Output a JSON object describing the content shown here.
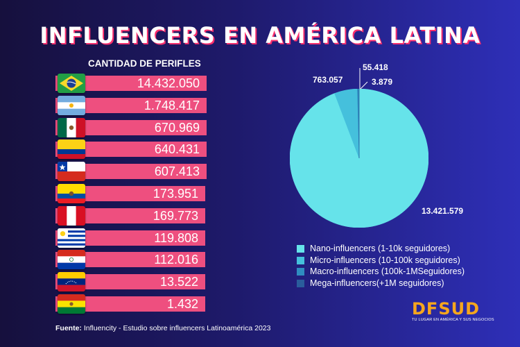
{
  "title": "INFLUENCERS EN AMÉRICA LATINA",
  "colors": {
    "bar": "#ee4f7f",
    "title_shadow": "#ff2f6d",
    "logo": "#f6a61d"
  },
  "chart_data": [
    {
      "type": "bar",
      "orientation": "horizontal",
      "title": "CANTIDAD DE PERIFLES",
      "categories": [
        "brazil-flag",
        "argentina-flag",
        "mexico-flag",
        "colombia-flag",
        "chile-flag",
        "ecuador-flag",
        "peru-flag",
        "uruguay-flag",
        "paraguay-flag",
        "venezuela-flag",
        "bolivia-flag"
      ],
      "values": [
        14432050,
        1748417,
        670969,
        640431,
        607413,
        173951,
        169773,
        119808,
        112016,
        13522,
        1432
      ],
      "value_labels": [
        "14.432.050",
        "1.748.417",
        "670.969",
        "640.431",
        "607.413",
        "173.951",
        "169.773",
        "119.808",
        "112.016",
        "13.522",
        "1.432"
      ]
    },
    {
      "type": "pie",
      "series": [
        {
          "name": "Nano-influencers (1-10k seguidores)",
          "value": 13421579,
          "label": "13.421.579",
          "color": "#66e3ea"
        },
        {
          "name": "Micro-influencers (10-100k seguidores)",
          "value": 763057,
          "label": "763.057",
          "color": "#45c0dc"
        },
        {
          "name": "Macro-influencers (100k-1MSeguidores)",
          "value": 55418,
          "label": "55.418",
          "color": "#2f8cc0"
        },
        {
          "name": "Mega-influencers(+1M seguidores)",
          "value": 3879,
          "label": "3.879",
          "color": "#2a5d9c"
        }
      ]
    }
  ],
  "source": {
    "prefix": "Fuente:",
    "text": " Influencity - Estudio sobre influencers Latinoamérica 2023"
  },
  "logo": {
    "main": "DFSUD",
    "tagline": "TU LUGAR EN AMÉRICA Y SUS NEGOCIOS"
  }
}
